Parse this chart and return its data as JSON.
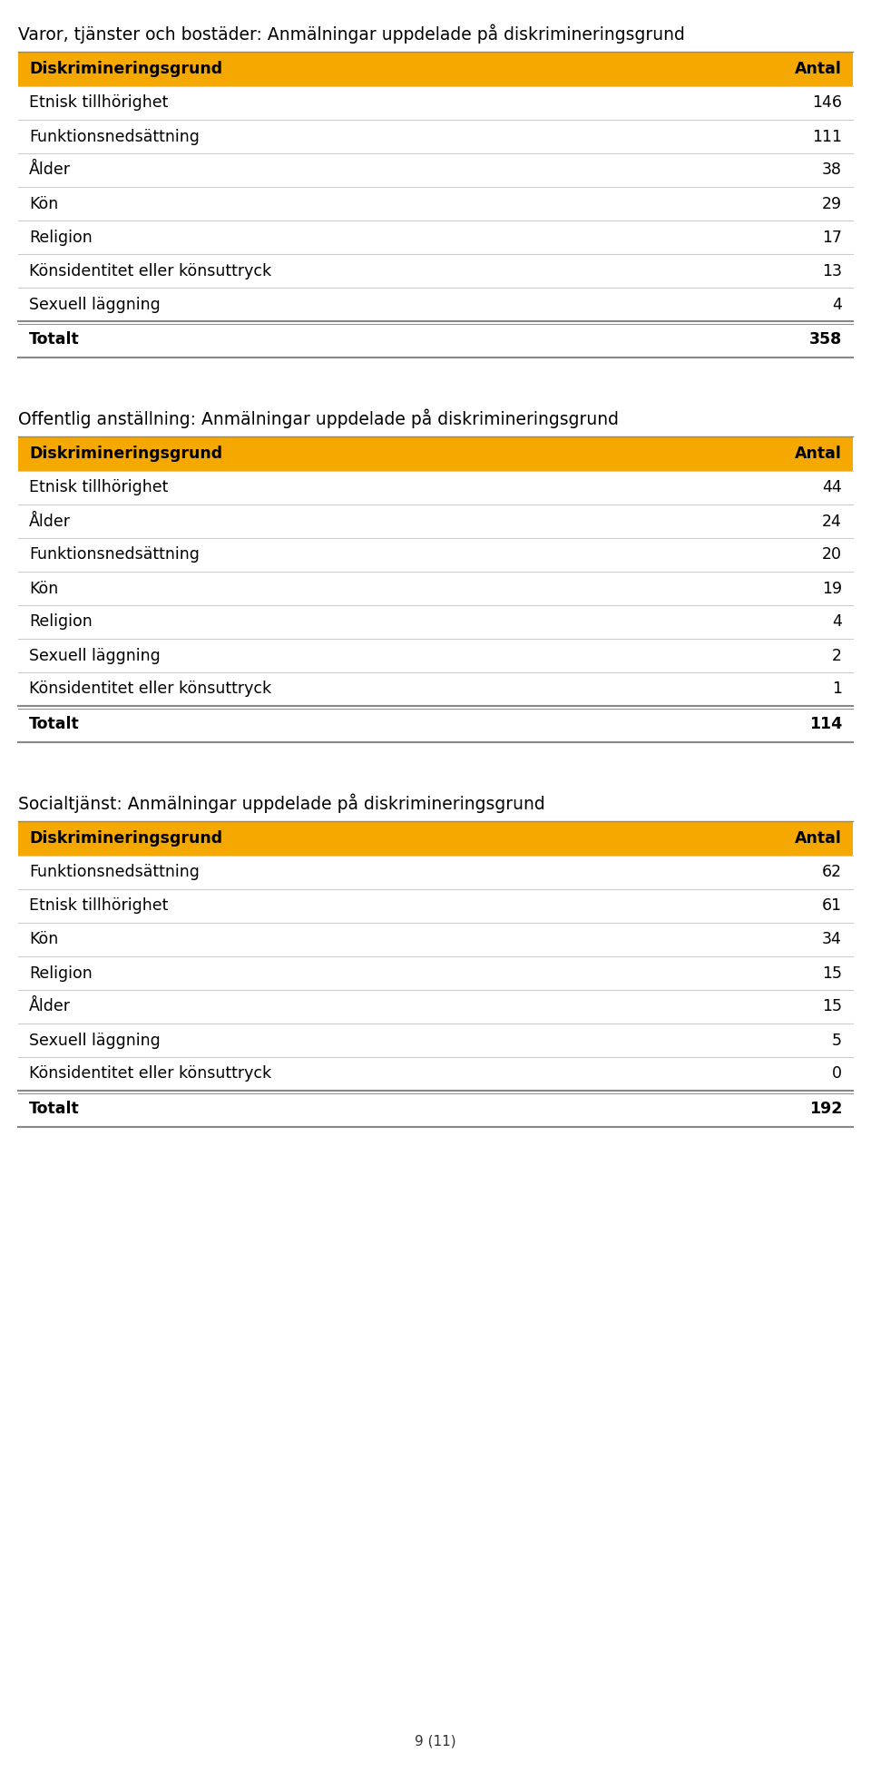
{
  "table1": {
    "title": "Varor, tjänster och bostäder: Anmälningar uppdelade på diskrimineringsgrund",
    "header": [
      "Diskrimineringsgrund",
      "Antal"
    ],
    "rows": [
      [
        "Etnisk tillhörighet",
        "146"
      ],
      [
        "Funktionsnedsättning",
        "111"
      ],
      [
        "Ålder",
        "38"
      ],
      [
        "Kön",
        "29"
      ],
      [
        "Religion",
        "17"
      ],
      [
        "Könsidentitet eller könsuttryck",
        "13"
      ],
      [
        "Sexuell läggning",
        "4"
      ]
    ],
    "total_row": [
      "Totalt",
      "358"
    ]
  },
  "table2": {
    "title": "Offentlig anställning: Anmälningar uppdelade på diskrimineringsgrund",
    "header": [
      "Diskrimineringsgrund",
      "Antal"
    ],
    "rows": [
      [
        "Etnisk tillhörighet",
        "44"
      ],
      [
        "Ålder",
        "24"
      ],
      [
        "Funktionsnedsättning",
        "20"
      ],
      [
        "Kön",
        "19"
      ],
      [
        "Religion",
        "4"
      ],
      [
        "Sexuell läggning",
        "2"
      ],
      [
        "Könsidentitet eller könsuttryck",
        "1"
      ]
    ],
    "total_row": [
      "Totalt",
      "114"
    ]
  },
  "table3": {
    "title": "Socialtjänst: Anmälningar uppdelade på diskrimineringsgrund",
    "header": [
      "Diskrimineringsgrund",
      "Antal"
    ],
    "rows": [
      [
        "Funktionsnedsättning",
        "62"
      ],
      [
        "Etnisk tillhörighet",
        "61"
      ],
      [
        "Kön",
        "34"
      ],
      [
        "Religion",
        "15"
      ],
      [
        "Ålder",
        "15"
      ],
      [
        "Sexuell läggning",
        "5"
      ],
      [
        "Könsidentitet eller könsuttryck",
        "0"
      ]
    ],
    "total_row": [
      "Totalt",
      "192"
    ]
  },
  "header_bg_color": "#F5A800",
  "header_text_color": "#000000",
  "separator_color": "#CCCCCC",
  "total_separator_color": "#888888",
  "title_fontsize": 13.5,
  "header_fontsize": 12.5,
  "row_fontsize": 12.5,
  "page_footer": "9 (11)",
  "bg_color": "#FFFFFF"
}
